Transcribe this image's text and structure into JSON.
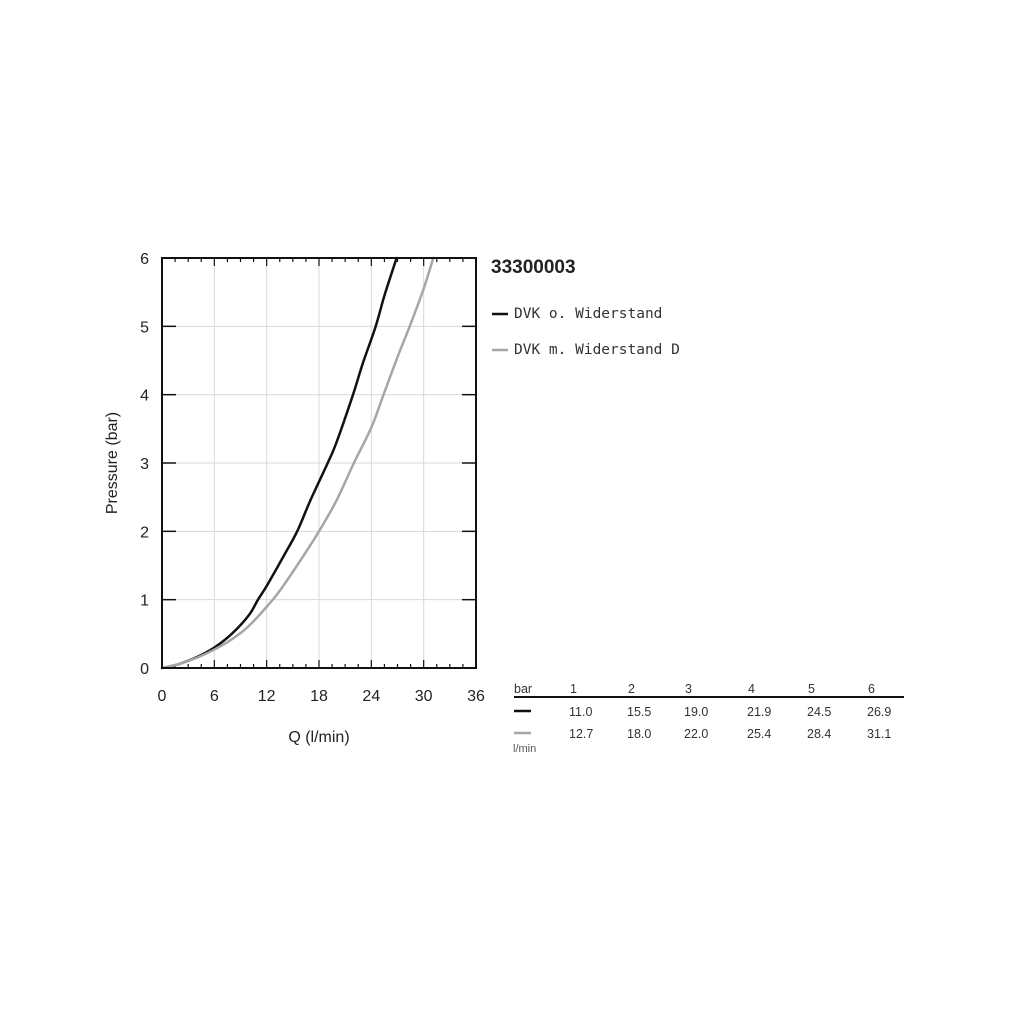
{
  "product_code": "33300003",
  "colors": {
    "black_series": "#111111",
    "gray_series": "#a6a6a6",
    "grid": "#d9d9d9"
  },
  "chart_data": {
    "type": "line",
    "xlabel": "Q (l/min)",
    "ylabel": "Pressure (bar)",
    "xlim": [
      0,
      36
    ],
    "ylim": [
      0,
      6
    ],
    "xticks": [
      0,
      6,
      12,
      18,
      24,
      30,
      36
    ],
    "yticks": [
      0,
      1,
      2,
      3,
      4,
      5,
      6
    ],
    "grid": true,
    "legend_position": "right",
    "series": [
      {
        "name": "DVK o. Widerstand",
        "color": "#111111",
        "x": [
          0,
          2,
          4,
          6,
          8,
          10,
          11.0,
          12,
          14,
          15.5,
          17,
          19.0,
          20,
          21.9,
          23,
          24.5,
          25.5,
          26.9
        ],
        "y": [
          0,
          0.06,
          0.16,
          0.3,
          0.5,
          0.78,
          1,
          1.2,
          1.65,
          2,
          2.45,
          3,
          3.3,
          4,
          4.45,
          5,
          5.45,
          6
        ]
      },
      {
        "name": "DVK m. Widerstand D",
        "color": "#a6a6a6",
        "x": [
          0,
          2,
          4,
          6,
          8,
          10,
          12.7,
          14,
          16,
          18.0,
          20,
          22.0,
          24,
          25.4,
          27,
          28.4,
          30,
          31.1
        ],
        "y": [
          0,
          0.06,
          0.15,
          0.27,
          0.42,
          0.62,
          1,
          1.22,
          1.6,
          2,
          2.45,
          3,
          3.52,
          4,
          4.55,
          5,
          5.55,
          6
        ]
      }
    ]
  },
  "table": {
    "header_label": "bar",
    "unit_label": "l/min",
    "columns": [
      "1",
      "2",
      "3",
      "4",
      "5",
      "6"
    ],
    "rows": [
      {
        "values": [
          "11.0",
          "15.5",
          "19.0",
          "21.9",
          "24.5",
          "26.9"
        ]
      },
      {
        "values": [
          "12.7",
          "18.0",
          "22.0",
          "25.4",
          "28.4",
          "31.1"
        ]
      }
    ]
  }
}
